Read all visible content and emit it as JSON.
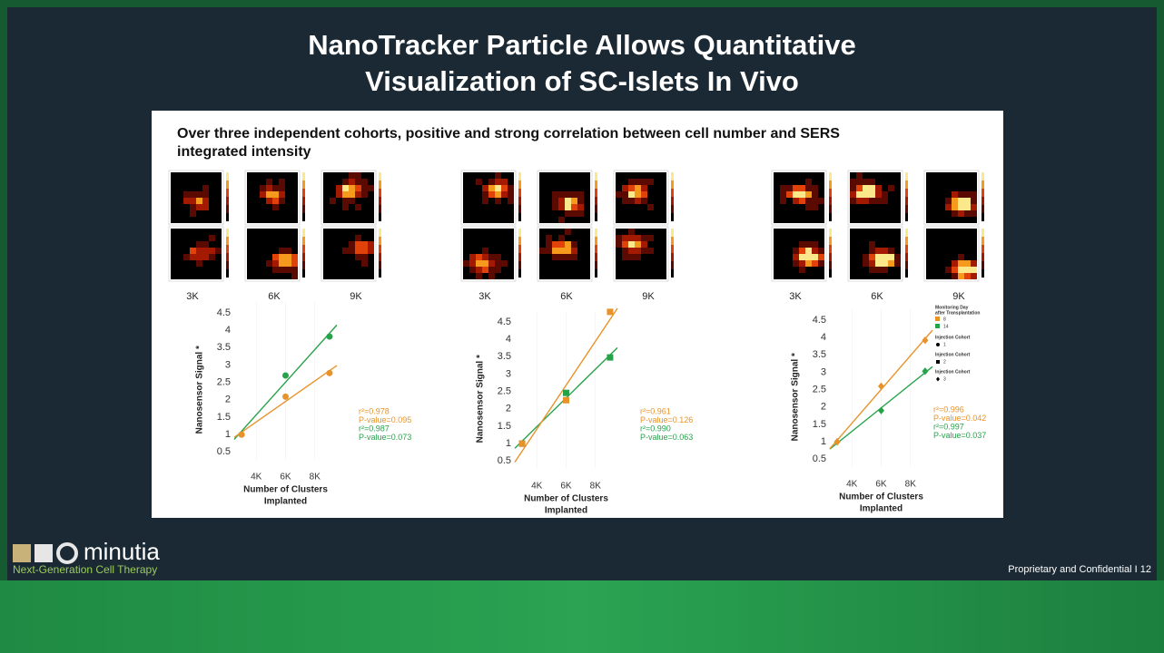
{
  "title": [
    "NanoTracker Particle Allows Quantitative",
    "Visualization of SC-Islets In Vivo"
  ],
  "subtitle": [
    "Over three independent cohorts, positive and strong correlation between cell number and SERS",
    "integrated intensity"
  ],
  "heatmap_labels": [
    [
      "3K",
      "6K",
      "9K"
    ],
    [
      "3K",
      "6K",
      "9K"
    ],
    [
      "3K",
      "6K",
      "9K"
    ]
  ],
  "footer": {
    "brand": "minutia",
    "tagline": "Next-Generation Cell Therapy",
    "notice": "Proprietary and Confidential  I  12"
  },
  "chart_data": [
    {
      "type": "scatter",
      "marker": "circle",
      "ylabel": "Nanosensor Signal *",
      "xlabel": [
        "Number of Clusters",
        "Implanted"
      ],
      "x": [
        3000,
        6000,
        9000
      ],
      "xlim": [
        2500,
        9500
      ],
      "xticks": [
        {
          "value": 4000,
          "label": "4K"
        },
        {
          "value": 6000,
          "label": "6K"
        },
        {
          "value": 8000,
          "label": "8K"
        }
      ],
      "ylim": [
        0.3,
        4.8
      ],
      "yticks": [
        0.5,
        1.0,
        1.5,
        2.0,
        2.5,
        3.0,
        3.5,
        4.0,
        4.5
      ],
      "series": [
        {
          "name": "14",
          "color": "#27a24a",
          "values": [
            1.0,
            2.7,
            3.82
          ]
        },
        {
          "name": "8",
          "color": "#e8932a",
          "values": [
            1.0,
            2.09,
            2.77
          ]
        }
      ],
      "annotations": [
        {
          "text": "r²=0.978",
          "color": "#e8932a"
        },
        {
          "text": "P-value=0.095",
          "color": "#e8932a"
        },
        {
          "text": "r²=0.987",
          "color": "#27a24a"
        },
        {
          "text": "P-value=0.073",
          "color": "#27a24a"
        }
      ]
    },
    {
      "type": "scatter",
      "marker": "square",
      "ylabel": "Nanosensor Signal *",
      "xlabel": [
        "Number of Clusters",
        "Implanted"
      ],
      "x": [
        3000,
        6000,
        9000
      ],
      "xlim": [
        2500,
        9500
      ],
      "xticks": [
        {
          "value": 4000,
          "label": "4K"
        },
        {
          "value": 6000,
          "label": "6K"
        },
        {
          "value": 8000,
          "label": "8K"
        }
      ],
      "ylim": [
        0.3,
        4.8
      ],
      "yticks": [
        0.5,
        1.0,
        1.5,
        2.0,
        2.5,
        3.0,
        3.5,
        4.0,
        4.5
      ],
      "series": [
        {
          "name": "14",
          "color": "#27a24a",
          "values": [
            1.0,
            2.46,
            3.48
          ]
        },
        {
          "name": "8",
          "color": "#e8932a",
          "values": [
            1.0,
            2.25,
            4.79
          ]
        }
      ],
      "annotations": [
        {
          "text": "r²=0.961",
          "color": "#e8932a"
        },
        {
          "text": "P-value=0.126",
          "color": "#e8932a"
        },
        {
          "text": "r²=0.990",
          "color": "#27a24a"
        },
        {
          "text": "P-value=0.063",
          "color": "#27a24a"
        }
      ]
    },
    {
      "type": "scatter",
      "marker": "diamond",
      "ylabel": "Nanosensor Signal *",
      "xlabel": [
        "Number of Clusters",
        "Implanted"
      ],
      "x": [
        3000,
        6000,
        9000
      ],
      "xlim": [
        2500,
        9500
      ],
      "xticks": [
        {
          "value": 4000,
          "label": "4K"
        },
        {
          "value": 6000,
          "label": "6K"
        },
        {
          "value": 8000,
          "label": "8K"
        }
      ],
      "ylim": [
        0.3,
        4.8
      ],
      "yticks": [
        0.5,
        1.0,
        1.5,
        2.0,
        2.5,
        3.0,
        3.5,
        4.0,
        4.5
      ],
      "series": [
        {
          "name": "14",
          "color": "#27a24a",
          "values": [
            1.0,
            1.9,
            3.03
          ]
        },
        {
          "name": "8",
          "color": "#e8932a",
          "values": [
            1.0,
            2.6,
            3.92
          ]
        }
      ],
      "annotations": [
        {
          "text": "r²=0.996",
          "color": "#e8932a"
        },
        {
          "text": "P-value=0.042",
          "color": "#e8932a"
        },
        {
          "text": "r²=0.997",
          "color": "#27a24a"
        },
        {
          "text": "P-value=0.037",
          "color": "#27a24a"
        }
      ],
      "legend_title": [
        "Monitoring Day",
        "after Transplantation"
      ],
      "cohort_legend": [
        {
          "title": "Injection Cohort",
          "label": "1",
          "marker": "circle"
        },
        {
          "title": "Injection Cohort",
          "label": "2",
          "marker": "square"
        },
        {
          "title": "Injection Cohort",
          "label": "3",
          "marker": "diamond"
        }
      ]
    }
  ]
}
